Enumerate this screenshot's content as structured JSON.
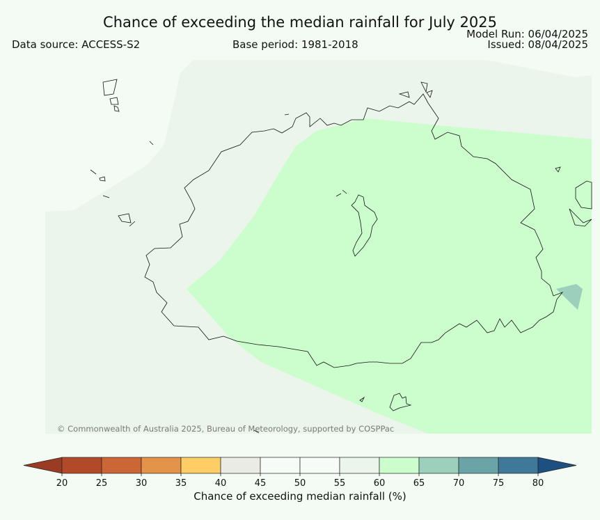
{
  "title": "Chance of exceeding the median rainfall for July 2025",
  "data_source": "Data source: ACCESS-S2",
  "base_period": "Base period: 1981-2018",
  "model_run": "Model Run: 06/04/2025",
  "issued": "Issued: 08/04/2025",
  "copyright": "© Commonwealth of Australia 2025, Bureau of Meteorology, supported by COSPPac",
  "colorbar": {
    "label": "Chance of exceeding median rainfall (%)",
    "ticks": [
      "20",
      "25",
      "30",
      "35",
      "40",
      "45",
      "50",
      "55",
      "60",
      "65",
      "70",
      "75",
      "80"
    ],
    "colors": [
      "#b24a2a",
      "#cb6636",
      "#e4934a",
      "#fecd66",
      "#ebebe6",
      "#f7fbf7",
      "#f7fbf7",
      "#ecf5ec",
      "#ccfdcd",
      "#9ccfbc",
      "#6ba4a6",
      "#3f7898"
    ],
    "under_color": "#9a3b23",
    "over_color": "#1d4f80"
  },
  "map_colors": {
    "background": "#f3fbf4",
    "category_55_60": "#ebf5eb",
    "category_60_65": "#ccfdcd",
    "category_65_70": "#9ccfbc",
    "coastline": "#111111"
  }
}
